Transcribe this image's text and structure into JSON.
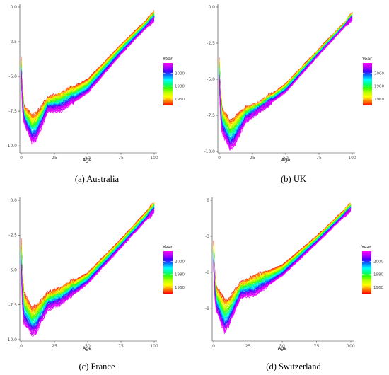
{
  "chart_data": [
    {
      "type": "line",
      "panel_label": "(a)",
      "caption": "Australia",
      "xlabel": "Age",
      "ylabel": "",
      "xlim": [
        0,
        100
      ],
      "ylim": [
        -10.4,
        0
      ],
      "x_ticks": [
        0,
        25,
        50,
        75,
        100
      ],
      "y_ticks": [
        0.0,
        -2.5,
        -5.0,
        -7.5,
        -10.0
      ],
      "y_tick_labels": [
        "0.0",
        "-2.5",
        "-5.0",
        "-7.5",
        "-10.0"
      ],
      "grid": false,
      "legend": {
        "title": "Year",
        "placement": "right",
        "ticks": [
          2000,
          1980,
          1960
        ],
        "range": [
          1950,
          2016
        ]
      },
      "series_years": [
        1950,
        2016
      ],
      "profile_first_year": {
        "age0": -3.7,
        "age2": -7.1,
        "min": -7.8,
        "age11": -7.7,
        "age20": -6.6,
        "age30": -6.2,
        "age50": -5.2,
        "age75": -2.7,
        "age100": -0.4
      },
      "profile_last_year": {
        "age0": -5.1,
        "age2": -8.3,
        "min": -9.7,
        "age11": -9.6,
        "age20": -7.5,
        "age30": -7.4,
        "age50": -6.2,
        "age75": -3.4,
        "age100": -0.9
      }
    },
    {
      "type": "line",
      "panel_label": "(b)",
      "caption": "UK",
      "xlabel": "Age",
      "ylabel": "",
      "xlim": [
        0,
        100
      ],
      "ylim": [
        -10.0,
        0
      ],
      "x_ticks": [
        0,
        25,
        50,
        75,
        100
      ],
      "y_ticks": [
        0.0,
        -2.5,
        -5.0,
        -7.5,
        -10.0
      ],
      "y_tick_labels": [
        "0.0",
        "-2.5",
        "-5.0",
        "-7.5",
        "-10.0"
      ],
      "grid": false,
      "legend": {
        "title": "Year",
        "placement": "right",
        "ticks": [
          2000,
          1980,
          1960
        ],
        "range": [
          1950,
          2016
        ]
      },
      "series_years": [
        1950,
        2016
      ],
      "profile_first_year": {
        "age0": -3.6,
        "age2": -7.0,
        "min": -7.9,
        "age11": -7.7,
        "age20": -7.0,
        "age30": -6.7,
        "age50": -5.3,
        "age75": -2.9,
        "age100": -0.5
      },
      "profile_last_year": {
        "age0": -5.3,
        "age2": -8.6,
        "min": -9.8,
        "age11": -9.6,
        "age20": -7.9,
        "age30": -7.2,
        "age50": -5.9,
        "age75": -3.3,
        "age100": -0.8
      }
    },
    {
      "type": "line",
      "panel_label": "(c)",
      "caption": "France",
      "xlabel": "Age",
      "ylabel": "",
      "xlim": [
        0,
        100
      ],
      "ylim": [
        -10.0,
        0
      ],
      "x_ticks": [
        0,
        25,
        50,
        75,
        100
      ],
      "y_ticks": [
        0.0,
        -2.5,
        -5.0,
        -7.5,
        -10.0
      ],
      "y_tick_labels": [
        "0.0",
        "-2.5",
        "-5.0",
        "-7.5",
        "-10.0"
      ],
      "grid": false,
      "legend": {
        "title": "Year",
        "placement": "right",
        "ticks": [
          2000,
          1980,
          1960
        ],
        "range": [
          1950,
          2016
        ]
      },
      "series_years": [
        1950,
        2016
      ],
      "profile_first_year": {
        "age0": -2.9,
        "age2": -6.6,
        "min": -7.8,
        "age11": -7.6,
        "age20": -6.7,
        "age30": -6.3,
        "age50": -5.2,
        "age75": -2.8,
        "age100": -0.2
      },
      "profile_last_year": {
        "age0": -5.2,
        "age2": -8.8,
        "min": -9.6,
        "age11": -9.5,
        "age20": -7.8,
        "age30": -7.4,
        "age50": -6.0,
        "age75": -3.4,
        "age100": -0.8
      }
    },
    {
      "type": "line",
      "panel_label": "(d)",
      "caption": "Switzerland",
      "xlabel": "Age",
      "ylabel": "",
      "xlim": [
        0,
        100
      ],
      "ylim": [
        -11.6,
        0
      ],
      "x_ticks": [
        0,
        25,
        50,
        75,
        100
      ],
      "y_ticks": [
        0,
        -3,
        -6,
        -9
      ],
      "y_tick_labels": [
        "0",
        "-3",
        "-6",
        "-9"
      ],
      "grid": false,
      "legend": {
        "title": "Year",
        "placement": "right",
        "ticks": [
          2000,
          1980,
          1960
        ],
        "range": [
          1950,
          2016
        ]
      },
      "series_years": [
        1950,
        2016
      ],
      "profile_first_year": {
        "age0": -3.5,
        "age2": -7.2,
        "min": -8.3,
        "age11": -8.2,
        "age20": -6.9,
        "age30": -6.3,
        "age50": -5.4,
        "age75": -3.0,
        "age100": -0.3
      },
      "profile_last_year": {
        "age0": -5.6,
        "age2": -9.2,
        "min": -11.0,
        "age11": -10.5,
        "age20": -8.0,
        "age30": -7.9,
        "age50": -6.3,
        "age75": -3.6,
        "age100": -0.8
      }
    }
  ],
  "colors": {
    "gradient": [
      "#ff00ff",
      "#b000ff",
      "#3f00ff",
      "#0080ff",
      "#00ffff",
      "#00ff80",
      "#40ff00",
      "#c0ff00",
      "#ffff00",
      "#ff8000",
      "#ff0000"
    ],
    "axis": "#333333",
    "tick_text": "#4d4d4d"
  }
}
